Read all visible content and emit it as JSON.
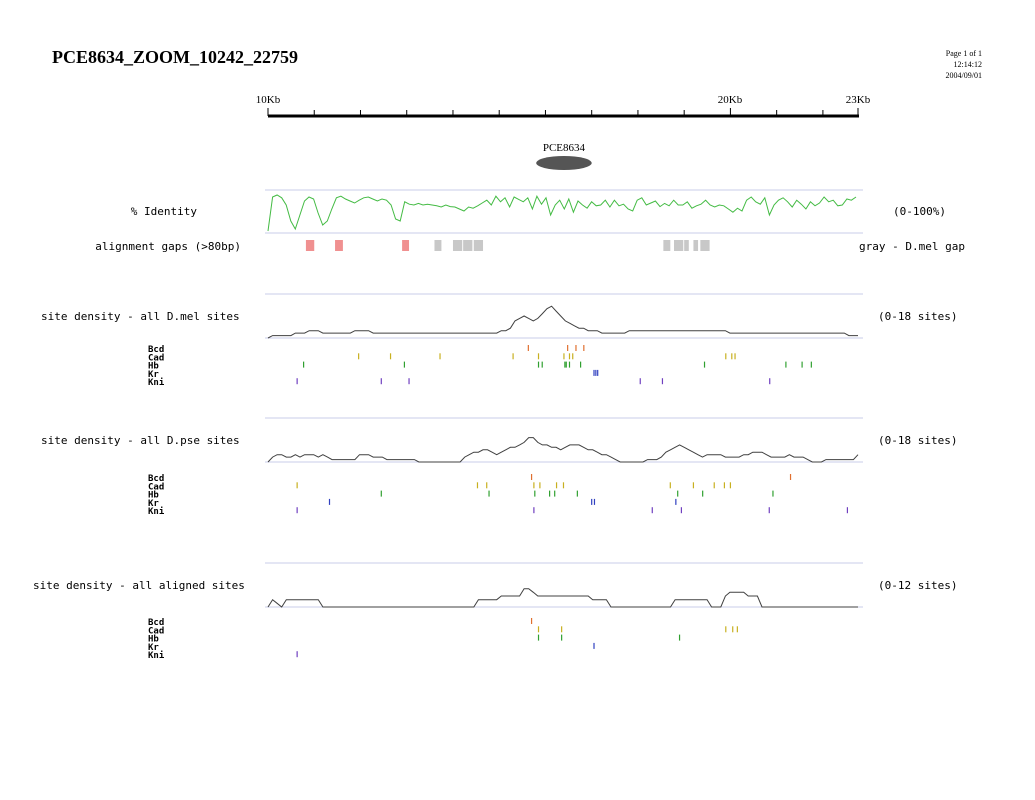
{
  "title": "PCE8634_ZOOM_10242_22759",
  "page_info": {
    "page": "Page 1 of 1",
    "time": "12:14:12",
    "date": "2004/09/01"
  },
  "ruler": {
    "start_label": "10Kb",
    "mid_label": "20Kb",
    "end_label": "23Kb",
    "start": 10000,
    "end": 22759
  },
  "element": {
    "name": "PCE8634",
    "start": 15800,
    "end": 17000
  },
  "identity": {
    "label": "% Identity",
    "range_label": "(0-100%)",
    "color": "#44bb44",
    "values": [
      5,
      90,
      95,
      88,
      70,
      30,
      10,
      45,
      80,
      90,
      85,
      50,
      20,
      30,
      60,
      88,
      92,
      85,
      80,
      75,
      82,
      88,
      90,
      85,
      80,
      85,
      82,
      70,
      35,
      30,
      78,
      72,
      70,
      74,
      70,
      72,
      70,
      68,
      65,
      70,
      66,
      65,
      60,
      55,
      65,
      62,
      68,
      75,
      82,
      70,
      92,
      78,
      88,
      65,
      90,
      84,
      78,
      88,
      60,
      92,
      72,
      88,
      45,
      70,
      82,
      60,
      85,
      52,
      80,
      70,
      62,
      78,
      68,
      70,
      82,
      65,
      82,
      68,
      72,
      60,
      55,
      82,
      88,
      70,
      75,
      80,
      66,
      74,
      68,
      82,
      70,
      70,
      78,
      62,
      68,
      72,
      82,
      70,
      65,
      70,
      68,
      60,
      52,
      62,
      55,
      82,
      90,
      78,
      72,
      88,
      45,
      70,
      82,
      88,
      78,
      65,
      82,
      72,
      60,
      78,
      68,
      75,
      90,
      78,
      82,
      68,
      70,
      85,
      82,
      90
    ]
  },
  "gaps": {
    "label": "alignment gaps (>80bp)",
    "right_label": "gray - D.mel gap",
    "colors": {
      "pink": "#f09090",
      "gray": "#c8c8c8"
    },
    "items": [
      {
        "s": 10820,
        "e": 11000,
        "c": "pink"
      },
      {
        "s": 11450,
        "e": 11620,
        "c": "pink"
      },
      {
        "s": 12900,
        "e": 13050,
        "c": "pink"
      },
      {
        "s": 13600,
        "e": 13750,
        "c": "gray"
      },
      {
        "s": 14000,
        "e": 14200,
        "c": "gray"
      },
      {
        "s": 14220,
        "e": 14420,
        "c": "gray"
      },
      {
        "s": 14450,
        "e": 14650,
        "c": "gray"
      },
      {
        "s": 18550,
        "e": 18700,
        "c": "gray"
      },
      {
        "s": 18780,
        "e": 18980,
        "c": "gray"
      },
      {
        "s": 19000,
        "e": 19100,
        "c": "gray"
      },
      {
        "s": 19200,
        "e": 19300,
        "c": "gray"
      },
      {
        "s": 19350,
        "e": 19550,
        "c": "gray"
      }
    ]
  },
  "factor_colors": {
    "Bcd": "#e07030",
    "Cad": "#c8b020",
    "Hb": "#30a030",
    "Kr": "#3040c0",
    "Kni": "#7040c0"
  },
  "tracks": [
    {
      "label": "site density - all D.mel sites",
      "range_label": "(0-18 sites)",
      "max": 18,
      "density": [
        0,
        1,
        1,
        1,
        1,
        1,
        2,
        2,
        2,
        3,
        3,
        3,
        2,
        2,
        2,
        2,
        2,
        2,
        2,
        3,
        3,
        3,
        3,
        2,
        2,
        2,
        2,
        2,
        2,
        2,
        2,
        2,
        2,
        2,
        2,
        2,
        2,
        2,
        2,
        2,
        2,
        2,
        2,
        2,
        2,
        2,
        2,
        2,
        2,
        2,
        2,
        3,
        3,
        4,
        7,
        8,
        9,
        8,
        7,
        8,
        10,
        12,
        13,
        11,
        9,
        7,
        6,
        5,
        4,
        4,
        3,
        3,
        3,
        2,
        2,
        2,
        2,
        2,
        2,
        3,
        3,
        3,
        3,
        3,
        3,
        3,
        3,
        3,
        3,
        3,
        3,
        3,
        3,
        3,
        3,
        3,
        3,
        3,
        3,
        3,
        3,
        2,
        2,
        2,
        2,
        2,
        2,
        2,
        2,
        2,
        2,
        2,
        2,
        2,
        2,
        2,
        2,
        2,
        2,
        2,
        2,
        2,
        2,
        2,
        2,
        2,
        2,
        1,
        1,
        1
      ],
      "sites": {
        "Bcd": [
          15630,
          16480,
          16660,
          16830
        ],
        "Cad": [
          11960,
          12650,
          13720,
          15300,
          15850,
          16400,
          16520,
          16590,
          19900,
          20030,
          20100
        ],
        "Hb": [
          10770,
          12950,
          15850,
          15930,
          16420,
          16450,
          16520,
          16760,
          19440,
          21200,
          21550,
          21750
        ],
        "Kr": [
          17050,
          17090,
          17130
        ],
        "Kni": [
          10630,
          12450,
          13050,
          18050,
          18530,
          20850
        ]
      }
    },
    {
      "label": "site density - all D.pse sites",
      "range_label": "(0-18 sites)",
      "max": 18,
      "density": [
        0,
        2,
        3,
        3,
        2,
        2,
        3,
        2,
        3,
        3,
        3,
        2,
        3,
        2,
        1,
        1,
        1,
        1,
        1,
        1,
        3,
        3,
        3,
        2,
        2,
        2,
        1,
        1,
        1,
        1,
        1,
        1,
        1,
        0,
        0,
        0,
        0,
        0,
        0,
        0,
        0,
        0,
        0,
        2,
        3,
        4,
        4,
        5,
        5,
        4,
        3,
        4,
        5,
        6,
        6,
        7,
        8,
        10,
        10,
        8,
        7,
        7,
        6,
        6,
        5,
        6,
        7,
        7,
        7,
        6,
        5,
        5,
        4,
        3,
        3,
        2,
        1,
        0,
        0,
        0,
        0,
        0,
        0,
        1,
        1,
        1,
        2,
        4,
        5,
        6,
        7,
        6,
        5,
        4,
        3,
        2,
        3,
        3,
        3,
        3,
        2,
        2,
        2,
        2,
        3,
        3,
        4,
        4,
        4,
        3,
        2,
        2,
        2,
        2,
        3,
        2,
        2,
        2,
        1,
        0,
        0,
        0,
        1,
        1,
        1,
        1,
        1,
        1,
        1,
        3
      ],
      "sites": {
        "Bcd": [
          15700,
          21300
        ],
        "Cad": [
          10630,
          14530,
          14730,
          15750,
          15880,
          16240,
          16390,
          18700,
          19200,
          19650,
          19870,
          20000
        ],
        "Hb": [
          12450,
          14780,
          15770,
          16090,
          16200,
          16690,
          18860,
          19400,
          20920
        ],
        "Kr": [
          11330,
          17000,
          17060,
          18820
        ],
        "Kni": [
          10630,
          15750,
          18310,
          18940,
          20840,
          22530
        ]
      }
    },
    {
      "label": "site density - all aligned sites",
      "range_label": "(0-12 sites)",
      "max": 12,
      "density": [
        0,
        2,
        1,
        0,
        2,
        2,
        2,
        2,
        2,
        2,
        2,
        2,
        0,
        0,
        0,
        0,
        0,
        0,
        0,
        0,
        0,
        0,
        0,
        0,
        0,
        0,
        0,
        0,
        0,
        0,
        0,
        0,
        0,
        0,
        0,
        0,
        0,
        0,
        0,
        0,
        0,
        0,
        0,
        0,
        0,
        0,
        2,
        2,
        2,
        2,
        2,
        3,
        3,
        3,
        3,
        3,
        5,
        5,
        4,
        3,
        3,
        3,
        3,
        3,
        3,
        3,
        3,
        3,
        3,
        3,
        3,
        2,
        2,
        2,
        2,
        0,
        0,
        0,
        0,
        0,
        0,
        0,
        0,
        0,
        0,
        0,
        0,
        0,
        0,
        2,
        2,
        2,
        2,
        2,
        2,
        2,
        2,
        0,
        0,
        0,
        3,
        4,
        4,
        4,
        4,
        3,
        3,
        3,
        0,
        0,
        0,
        0,
        0,
        0,
        0,
        0,
        0,
        0,
        0,
        0,
        0,
        0,
        0,
        0,
        0,
        0,
        0,
        0,
        0,
        0
      ],
      "sites": {
        "Bcd": [
          15700
        ],
        "Cad": [
          15850,
          16350,
          19900,
          20050,
          20150
        ],
        "Hb": [
          15850,
          16350,
          18900
        ],
        "Kr": [
          17050
        ],
        "Kni": [
          10630
        ]
      }
    }
  ],
  "factor_labels": [
    "Bcd",
    "Cad",
    "Hb",
    "Kr",
    "Kni"
  ]
}
